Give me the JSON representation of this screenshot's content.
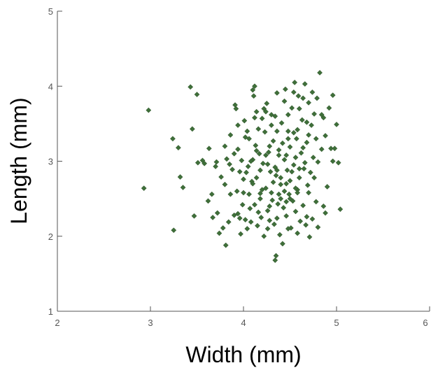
{
  "chart_data": {
    "type": "scatter",
    "xlabel": "Width (mm)",
    "ylabel": "Length (mm)",
    "xlim": [
      2,
      6
    ],
    "ylim": [
      1,
      5
    ],
    "xticks": [
      "2",
      "3",
      "4",
      "5",
      "6"
    ],
    "yticks": [
      "1",
      "2",
      "3",
      "4",
      "5"
    ],
    "grid": false,
    "marker_color": "#3f6f3a",
    "series": [
      {
        "points": [
          [
            2.93,
            2.64
          ],
          [
            2.98,
            3.68
          ],
          [
            3.24,
            3.3
          ],
          [
            3.25,
            2.08
          ],
          [
            3.32,
            2.79
          ],
          [
            3.35,
            2.65
          ],
          [
            3.3,
            3.18
          ],
          [
            3.43,
            3.99
          ],
          [
            3.45,
            3.43
          ],
          [
            3.5,
            3.89
          ],
          [
            3.47,
            2.27
          ],
          [
            3.51,
            2.98
          ],
          [
            3.56,
            3.01
          ],
          [
            3.58,
            2.97
          ],
          [
            3.62,
            2.47
          ],
          [
            3.63,
            3.17
          ],
          [
            3.66,
            2.56
          ],
          [
            3.67,
            2.25
          ],
          [
            3.7,
            2.93
          ],
          [
            3.71,
            2.99
          ],
          [
            3.72,
            2.31
          ],
          [
            3.74,
            2.04
          ],
          [
            3.76,
            2.79
          ],
          [
            3.78,
            2.11
          ],
          [
            3.8,
            2.69
          ],
          [
            3.81,
            1.88
          ],
          [
            3.82,
            3.03
          ],
          [
            3.84,
            2.19
          ],
          [
            3.85,
            2.96
          ],
          [
            3.86,
            3.35
          ],
          [
            3.88,
            2.89
          ],
          [
            3.9,
            2.28
          ],
          [
            3.91,
            3.75
          ],
          [
            3.92,
            3.7
          ],
          [
            3.93,
            2.6
          ],
          [
            3.94,
            3.16
          ],
          [
            3.96,
            2.24
          ],
          [
            3.97,
            2.03
          ],
          [
            3.98,
            3.01
          ],
          [
            3.99,
            2.42
          ],
          [
            4.0,
            2.58
          ],
          [
            4.01,
            3.54
          ],
          [
            4.02,
            2.22
          ],
          [
            4.03,
            2.85
          ],
          [
            4.05,
            2.93
          ],
          [
            4.06,
            3.3
          ],
          [
            4.07,
            2.37
          ],
          [
            4.08,
            2.19
          ],
          [
            4.09,
            2.73
          ],
          [
            4.1,
            3.02
          ],
          [
            4.11,
            3.87
          ],
          [
            4.12,
            4.0
          ],
          [
            4.12,
            2.42
          ],
          [
            4.13,
            3.21
          ],
          [
            4.14,
            2.78
          ],
          [
            4.15,
            2.14
          ],
          [
            4.16,
            3.43
          ],
          [
            4.17,
            3.1
          ],
          [
            4.18,
            2.57
          ],
          [
            4.19,
            2.25
          ],
          [
            4.2,
            3.57
          ],
          [
            4.21,
            2.97
          ],
          [
            4.22,
            2.0
          ],
          [
            4.23,
            3.39
          ],
          [
            4.24,
            2.64
          ],
          [
            4.25,
            3.77
          ],
          [
            4.26,
            2.34
          ],
          [
            4.27,
            3.12
          ],
          [
            4.28,
            2.21
          ],
          [
            4.29,
            2.86
          ],
          [
            4.3,
            3.62
          ],
          [
            4.31,
            2.48
          ],
          [
            4.32,
            3.27
          ],
          [
            4.33,
            2.16
          ],
          [
            4.34,
            1.68
          ],
          [
            4.35,
            1.74
          ],
          [
            4.35,
            2.81
          ],
          [
            4.36,
            3.91
          ],
          [
            4.37,
            2.43
          ],
          [
            4.38,
            3.15
          ],
          [
            4.39,
            2.02
          ],
          [
            4.4,
            2.69
          ],
          [
            4.41,
            3.51
          ],
          [
            4.42,
            1.9
          ],
          [
            4.43,
            2.38
          ],
          [
            4.44,
            3.02
          ],
          [
            4.45,
            3.96
          ],
          [
            4.46,
            2.27
          ],
          [
            4.47,
            2.88
          ],
          [
            4.48,
            3.4
          ],
          [
            4.49,
            2.56
          ],
          [
            4.5,
            3.19
          ],
          [
            4.51,
            2.11
          ],
          [
            4.52,
            3.71
          ],
          [
            4.53,
            2.47
          ],
          [
            4.54,
            2.95
          ],
          [
            4.55,
            4.05
          ],
          [
            4.56,
            2.33
          ],
          [
            4.57,
            3.3
          ],
          [
            4.58,
            2.62
          ],
          [
            4.59,
            3.87
          ],
          [
            4.6,
            2.78
          ],
          [
            4.61,
            2.2
          ],
          [
            4.62,
            3.11
          ],
          [
            4.63,
            3.55
          ],
          [
            4.64,
            2.41
          ],
          [
            4.65,
            2.9
          ],
          [
            4.66,
            4.03
          ],
          [
            4.67,
            2.15
          ],
          [
            4.68,
            3.25
          ],
          [
            4.69,
            2.68
          ],
          [
            4.7,
            3.78
          ],
          [
            4.71,
            1.99
          ],
          [
            4.72,
            2.85
          ],
          [
            4.73,
            3.48
          ],
          [
            4.74,
            2.23
          ],
          [
            4.75,
            3.05
          ],
          [
            4.76,
            3.63
          ],
          [
            4.78,
            2.46
          ],
          [
            4.79,
            3.84
          ],
          [
            4.8,
            2.99
          ],
          [
            4.82,
            4.18
          ],
          [
            4.84,
            3.16
          ],
          [
            4.86,
            3.58
          ],
          [
            4.88,
            2.31
          ],
          [
            4.9,
            2.66
          ],
          [
            4.92,
            3.71
          ],
          [
            4.94,
            3.17
          ],
          [
            4.96,
            3.88
          ],
          [
            4.98,
            3.17
          ],
          [
            5.0,
            3.49
          ],
          [
            5.02,
            2.98
          ],
          [
            5.04,
            2.36
          ],
          [
            4.1,
            3.95
          ],
          [
            4.22,
            3.7
          ],
          [
            4.36,
            3.4
          ],
          [
            4.48,
            3.62
          ],
          [
            4.56,
            3.05
          ],
          [
            4.6,
            3.7
          ],
          [
            4.7,
            3.35
          ],
          [
            4.26,
            2.96
          ],
          [
            4.4,
            2.5
          ],
          [
            4.5,
            2.5
          ],
          [
            4.32,
            2.72
          ],
          [
            4.44,
            2.6
          ],
          [
            4.18,
            2.5
          ],
          [
            4.06,
            2.56
          ],
          [
            4.28,
            2.4
          ],
          [
            4.38,
            2.56
          ],
          [
            4.58,
            2.58
          ],
          [
            4.46,
            2.7
          ],
          [
            4.34,
            2.92
          ],
          [
            4.24,
            3.08
          ],
          [
            4.14,
            3.14
          ],
          [
            4.52,
            2.86
          ],
          [
            4.42,
            3.24
          ],
          [
            4.64,
            3.18
          ],
          [
            4.02,
            3.32
          ],
          [
            4.12,
            3.58
          ],
          [
            4.3,
            3.48
          ],
          [
            4.46,
            3.08
          ],
          [
            4.54,
            3.38
          ],
          [
            4.66,
            2.98
          ],
          [
            4.76,
            2.78
          ],
          [
            3.96,
            2.86
          ],
          [
            3.86,
            2.56
          ],
          [
            3.94,
            2.3
          ],
          [
            4.04,
            2.1
          ],
          [
            4.16,
            2.32
          ],
          [
            4.26,
            2.1
          ],
          [
            4.36,
            2.24
          ],
          [
            4.48,
            2.1
          ],
          [
            4.58,
            2.04
          ],
          [
            4.68,
            2.26
          ],
          [
            4.8,
            2.12
          ],
          [
            4.86,
            2.4
          ],
          [
            4.2,
            2.62
          ],
          [
            4.3,
            2.58
          ],
          [
            4.4,
            2.78
          ],
          [
            4.5,
            2.74
          ],
          [
            4.6,
            2.9
          ],
          [
            4.7,
            2.58
          ],
          [
            4.1,
            2.7
          ],
          [
            4.0,
            2.76
          ],
          [
            3.9,
            3.1
          ],
          [
            3.8,
            3.2
          ],
          [
            4.08,
            3.0
          ],
          [
            4.18,
            2.88
          ],
          [
            4.28,
            3.2
          ],
          [
            4.38,
            3.08
          ],
          [
            4.48,
            3.3
          ],
          [
            4.58,
            3.42
          ],
          [
            4.68,
            3.52
          ],
          [
            4.78,
            3.3
          ],
          [
            4.88,
            3.34
          ],
          [
            4.96,
            3.0
          ],
          [
            4.34,
            3.6
          ],
          [
            4.24,
            3.66
          ],
          [
            4.44,
            3.8
          ],
          [
            4.54,
            3.92
          ],
          [
            4.64,
            3.84
          ],
          [
            4.74,
            3.92
          ],
          [
            4.84,
            3.62
          ],
          [
            4.14,
            3.66
          ],
          [
            4.04,
            3.4
          ],
          [
            3.94,
            3.48
          ],
          [
            4.36,
            2.88
          ],
          [
            4.46,
            2.46
          ],
          [
            4.56,
            2.64
          ]
        ]
      }
    ]
  }
}
